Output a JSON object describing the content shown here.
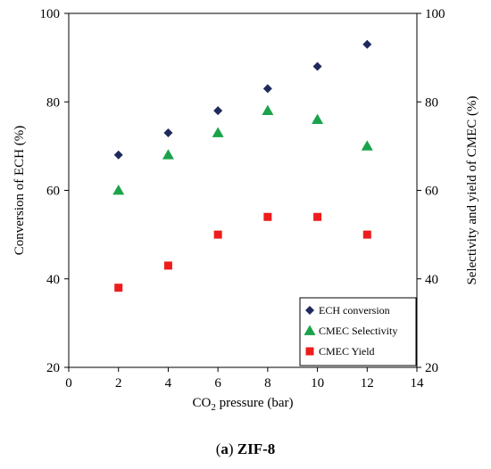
{
  "chart_data": {
    "type": "scatter",
    "x": [
      2,
      4,
      6,
      8,
      10,
      12
    ],
    "series": [
      {
        "name": "ECH conversion",
        "values": [
          68,
          73,
          78,
          83,
          88,
          93
        ],
        "color": "#1f2a5c",
        "marker": "diamond"
      },
      {
        "name": "CMEC Selectivity",
        "values": [
          60,
          68,
          73,
          78,
          76,
          70
        ],
        "color": "#1aa34a",
        "marker": "triangle"
      },
      {
        "name": "CMEC Yield",
        "values": [
          38,
          43,
          50,
          54,
          54,
          50
        ],
        "color": "#ee1c1c",
        "marker": "square"
      }
    ],
    "xlim": [
      0,
      14
    ],
    "xticks": [
      "0",
      "2",
      "4",
      "6",
      "8",
      "10",
      "12",
      "14"
    ],
    "ylim": [
      20,
      100
    ],
    "yticks": [
      "20",
      "40",
      "60",
      "80",
      "100"
    ],
    "xlabel_prefix": "CO",
    "xlabel_sub": "2",
    "xlabel_suffix": " pressure (bar)",
    "ylabel_left": "Conversion of ECH (%)",
    "ylabel_right": "Selectivity and yield of CMEC (%)",
    "legend_position": "bottom-right",
    "grid": false
  },
  "caption": {
    "prefix": "(",
    "letter": "a",
    "middle": ") ",
    "name": "ZIF-8"
  }
}
